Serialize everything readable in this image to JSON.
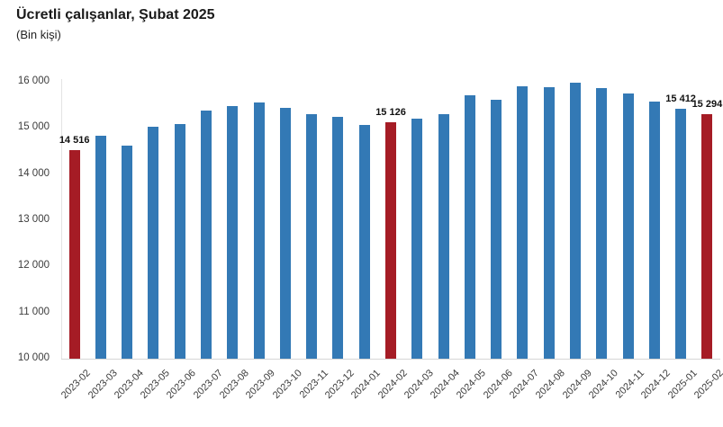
{
  "page": {
    "title": "Ücretli çalışanlar, Şubat 2025",
    "subtitle": "(Bin kişi)"
  },
  "colors": {
    "bar": "#3379B5",
    "highlight": "#A51C25",
    "axis_line": "#D6D6D6",
    "tick_text": "#3C3C3C",
    "data_label_text": "#111111"
  },
  "chart_data": {
    "type": "bar",
    "title": "Ücretli çalışanlar, Şubat 2025",
    "subtitle": "(Bin kişi)",
    "xlabel": "",
    "ylabel": "",
    "ylim": [
      10000,
      16000
    ],
    "grid": false,
    "legend": false,
    "categories": [
      "2023-02",
      "2023-03",
      "2023-04",
      "2023-05",
      "2023-06",
      "2023-07",
      "2023-08",
      "2023-09",
      "2023-10",
      "2023-11",
      "2023-12",
      "2024-01",
      "2024-02",
      "2024-03",
      "2024-04",
      "2024-05",
      "2024-06",
      "2024-07",
      "2024-08",
      "2024-09",
      "2024-10",
      "2024-11",
      "2024-12",
      "2025-01",
      "2025-02"
    ],
    "values": [
      14516,
      14830,
      14620,
      15020,
      15080,
      15370,
      15480,
      15550,
      15440,
      15300,
      15240,
      15060,
      15126,
      15210,
      15290,
      15700,
      15620,
      15900,
      15890,
      15980,
      15870,
      15750,
      15580,
      15412,
      15294
    ],
    "highlighted_categories": [
      "2023-02",
      "2024-02",
      "2025-02"
    ],
    "data_labels": {
      "2023-02": "14 516",
      "2024-02": "15 126",
      "2025-01": "15 412",
      "2025-02": "15 294"
    },
    "yticks": [
      {
        "value": 16000,
        "label": "16 000"
      },
      {
        "value": 15000,
        "label": "15 000"
      },
      {
        "value": 14000,
        "label": "14 000"
      },
      {
        "value": 13000,
        "label": "13 000"
      },
      {
        "value": 12000,
        "label": "12 000"
      },
      {
        "value": 11000,
        "label": "11 000"
      },
      {
        "value": 10000,
        "label": "10 000"
      }
    ]
  }
}
